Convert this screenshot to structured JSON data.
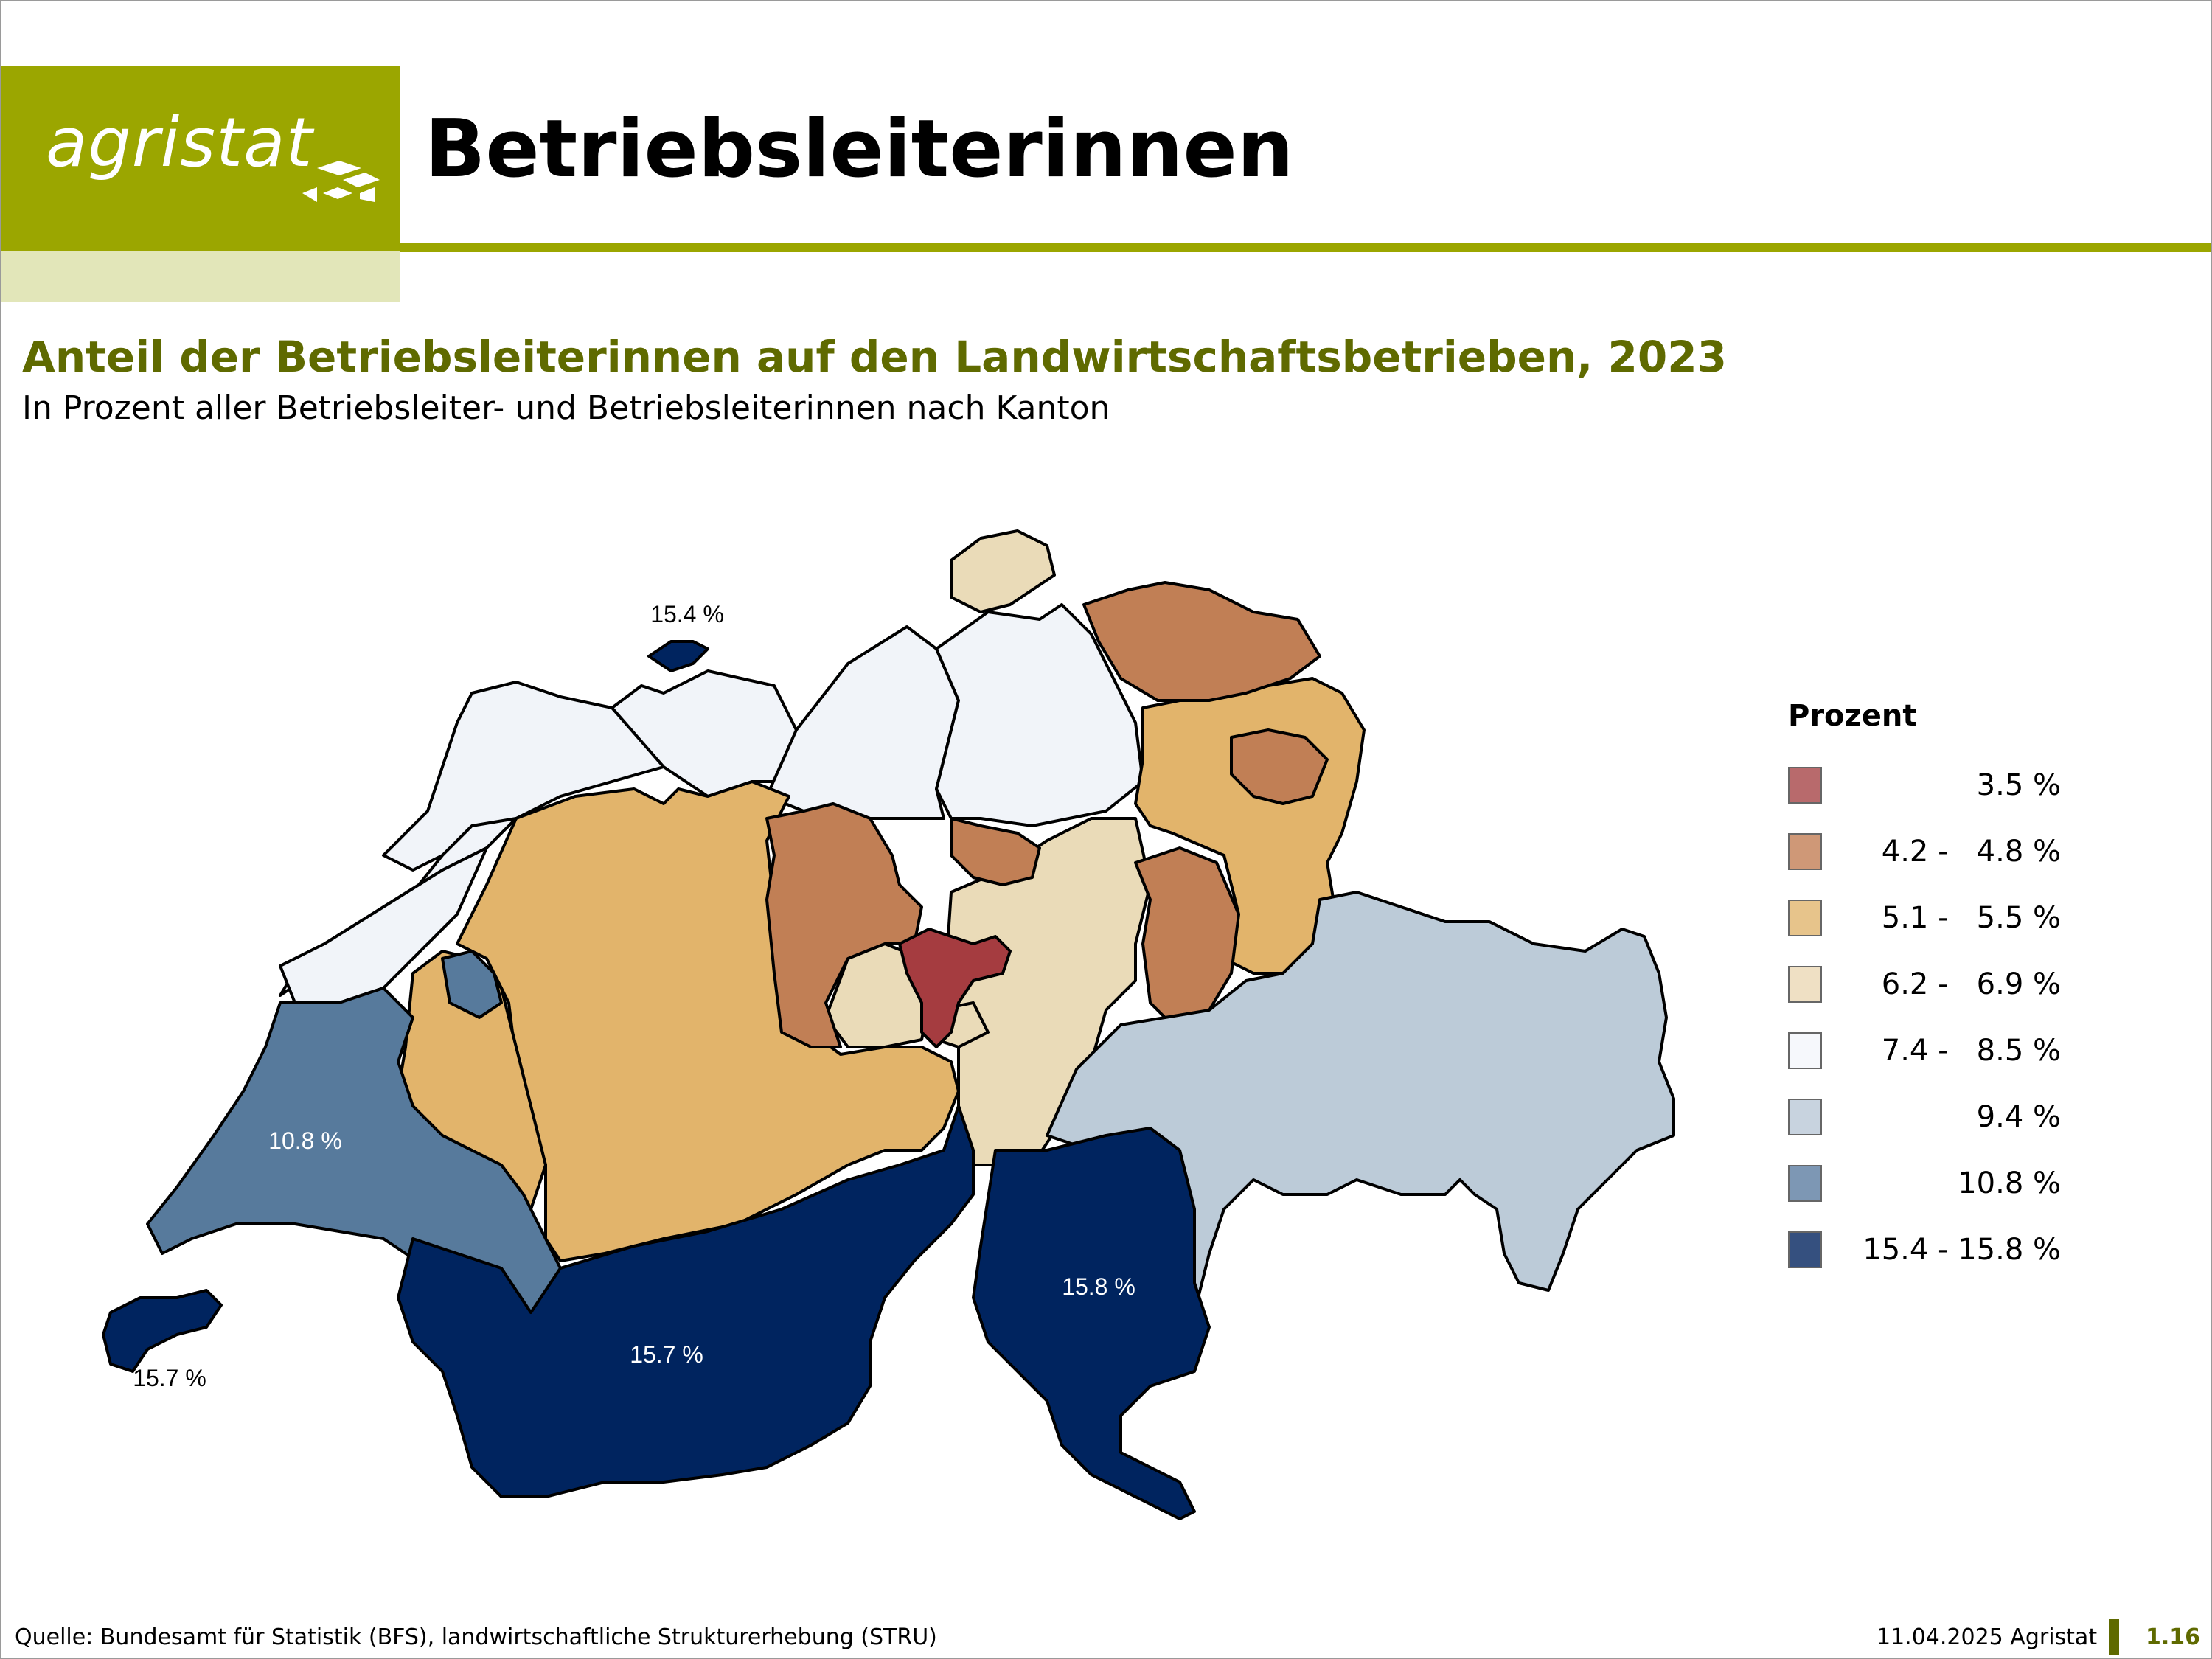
{
  "header": {
    "logo_text": "agristat",
    "title": "Betriebsleiterinnen"
  },
  "chart": {
    "title": "Anteil der Betriebsleiterinnen auf den Landwirtschaftsbetrieben, 2023",
    "subtitle": "In Prozent aller Betriebsleiter- und Betriebsleiterinnen nach Kanton"
  },
  "map_labels": [
    {
      "id": "bs",
      "text": "15.4 %"
    },
    {
      "id": "vd",
      "text": "10.8 %"
    },
    {
      "id": "ge",
      "text": "15.7 %"
    },
    {
      "id": "vs",
      "text": "15.7 %"
    },
    {
      "id": "ti",
      "text": "15.8 %"
    }
  ],
  "legend": {
    "title": "Prozent",
    "items": [
      {
        "label": "3.5 %",
        "color": "#b86a6c"
      },
      {
        "label": "4.2 -   4.8 %",
        "color": "#cf9877"
      },
      {
        "label": "5.1 -   5.5 %",
        "color": "#e7c48b"
      },
      {
        "label": "6.2 -   6.9 %",
        "color": "#efe0c4"
      },
      {
        "label": "7.4 -   8.5 %",
        "color": "#f6f8fc"
      },
      {
        "label": "9.4 %",
        "color": "#c8d3df"
      },
      {
        "label": "10.8 %",
        "color": "#7d97b4"
      },
      {
        "label": "15.4 - 15.8 %",
        "color": "#35507f"
      }
    ]
  },
  "region_colors": {
    "dark_red": "#a53c40",
    "brown": "#c17f55",
    "tan": "#e2b46b",
    "beige": "#eadbb8",
    "white": "#f1f4f9",
    "light_blue": "#bccbd8",
    "mid_blue": "#577a9c",
    "navy": "#00245f"
  },
  "footer": {
    "source": "Quelle: Bundesamt für Statistik (BFS), landwirtschaftliche Strukturerhebung (STRU)",
    "date": "11.04.2025 Agristat",
    "page": "1.16"
  }
}
